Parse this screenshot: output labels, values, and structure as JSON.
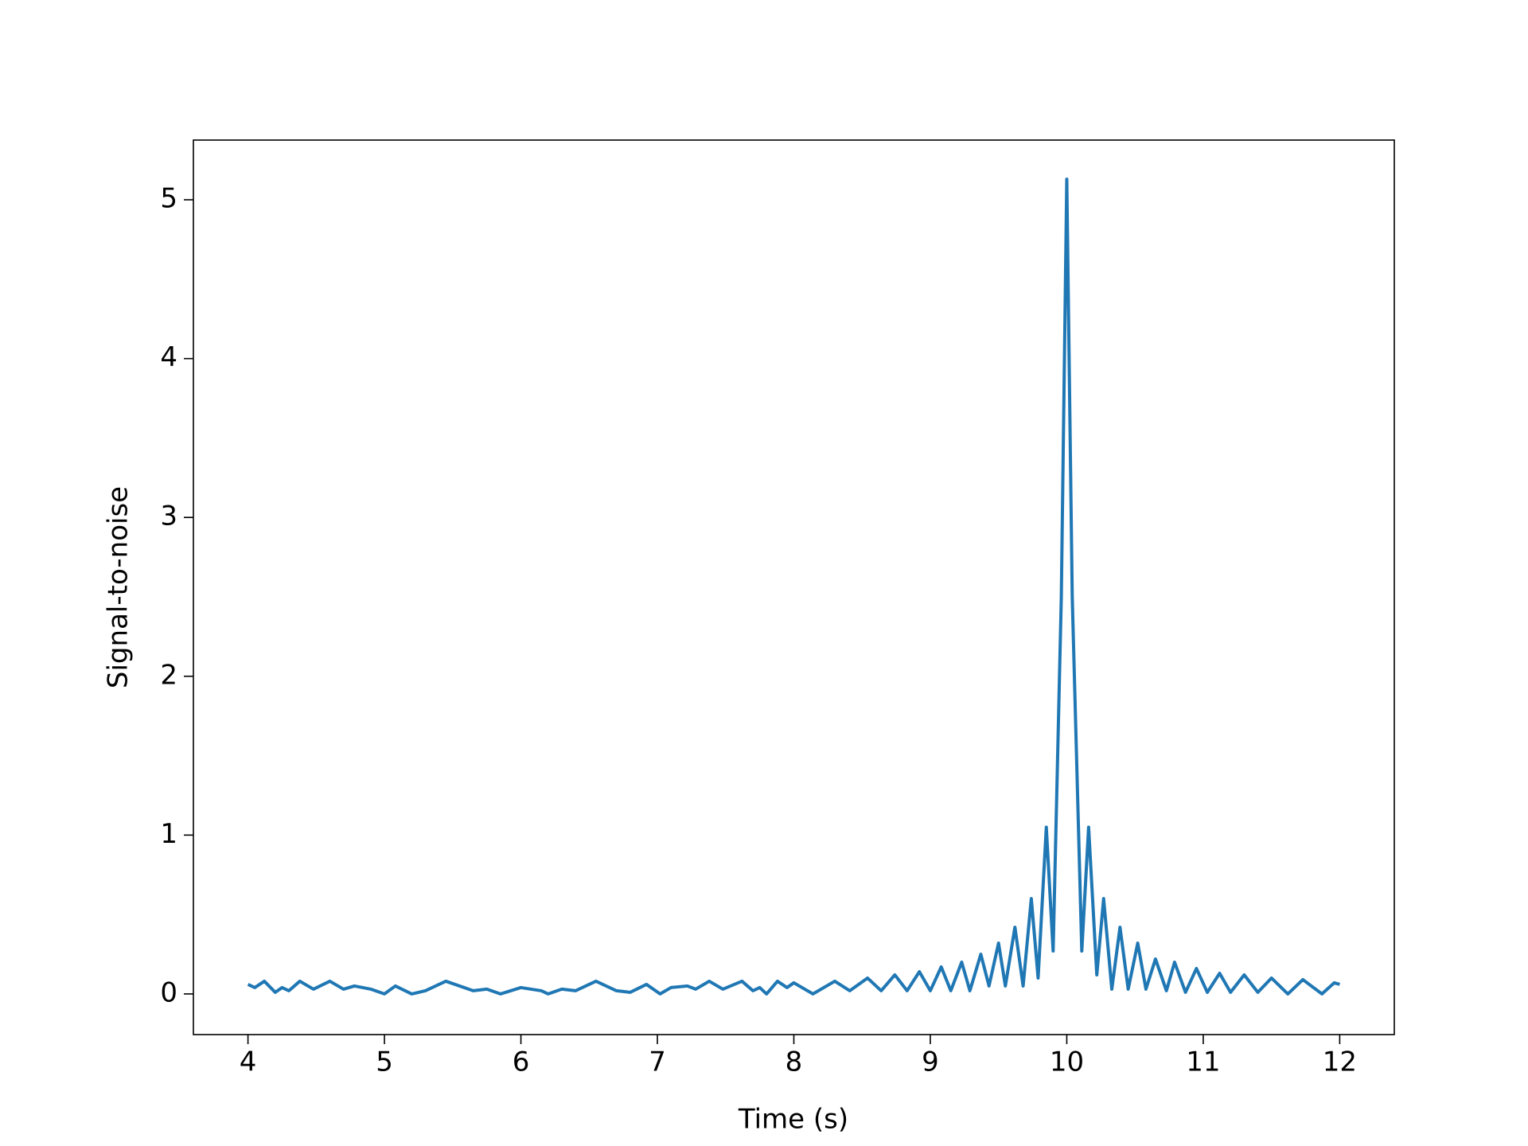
{
  "chart_data": {
    "type": "line",
    "xlabel": "Time (s)",
    "ylabel": "Signal-to-noise",
    "color": "#1f77b4",
    "x": [
      4.0,
      4.05,
      4.12,
      4.2,
      4.25,
      4.3,
      4.38,
      4.48,
      4.6,
      4.7,
      4.78,
      4.9,
      5.0,
      5.08,
      5.2,
      5.3,
      5.45,
      5.65,
      5.75,
      5.85,
      6.0,
      6.15,
      6.2,
      6.3,
      6.4,
      6.55,
      6.7,
      6.8,
      6.92,
      7.02,
      7.1,
      7.22,
      7.28,
      7.38,
      7.48,
      7.62,
      7.7,
      7.75,
      7.8,
      7.88,
      7.95,
      8.0,
      8.14,
      8.3,
      8.41,
      8.54,
      8.64,
      8.74,
      8.83,
      8.92,
      9.0,
      9.08,
      9.15,
      9.23,
      9.29,
      9.37,
      9.43,
      9.5,
      9.55,
      9.62,
      9.68,
      9.74,
      9.79,
      9.85,
      9.9,
      9.96,
      10.0,
      10.04,
      10.11,
      10.16,
      10.22,
      10.27,
      10.33,
      10.39,
      10.45,
      10.52,
      10.58,
      10.65,
      10.73,
      10.79,
      10.87,
      10.95,
      11.03,
      11.12,
      11.2,
      11.3,
      11.4,
      11.5,
      11.62,
      11.73,
      11.87,
      11.96,
      12.0
    ],
    "values": [
      0.06,
      0.04,
      0.08,
      0.01,
      0.04,
      0.02,
      0.08,
      0.03,
      0.08,
      0.03,
      0.05,
      0.03,
      0.0,
      0.05,
      0.0,
      0.02,
      0.08,
      0.02,
      0.03,
      0.0,
      0.04,
      0.02,
      0.0,
      0.03,
      0.02,
      0.08,
      0.02,
      0.01,
      0.06,
      0.0,
      0.04,
      0.05,
      0.03,
      0.08,
      0.03,
      0.08,
      0.02,
      0.04,
      0.0,
      0.08,
      0.04,
      0.07,
      0.0,
      0.08,
      0.02,
      0.1,
      0.02,
      0.12,
      0.02,
      0.14,
      0.02,
      0.17,
      0.02,
      0.2,
      0.02,
      0.25,
      0.05,
      0.32,
      0.05,
      0.42,
      0.05,
      0.6,
      0.1,
      1.05,
      0.27,
      2.5,
      5.13,
      2.5,
      0.27,
      1.05,
      0.12,
      0.6,
      0.03,
      0.42,
      0.03,
      0.32,
      0.03,
      0.22,
      0.02,
      0.2,
      0.01,
      0.16,
      0.01,
      0.13,
      0.01,
      0.12,
      0.01,
      0.1,
      0.0,
      0.09,
      0.0,
      0.07,
      0.06
    ],
    "xlim": [
      3.6,
      12.4
    ],
    "ylim": [
      -0.256,
      5.376
    ],
    "xticks": [
      4,
      5,
      6,
      7,
      8,
      9,
      10,
      11,
      12
    ],
    "yticks": [
      0,
      1,
      2,
      3,
      4,
      5
    ]
  }
}
